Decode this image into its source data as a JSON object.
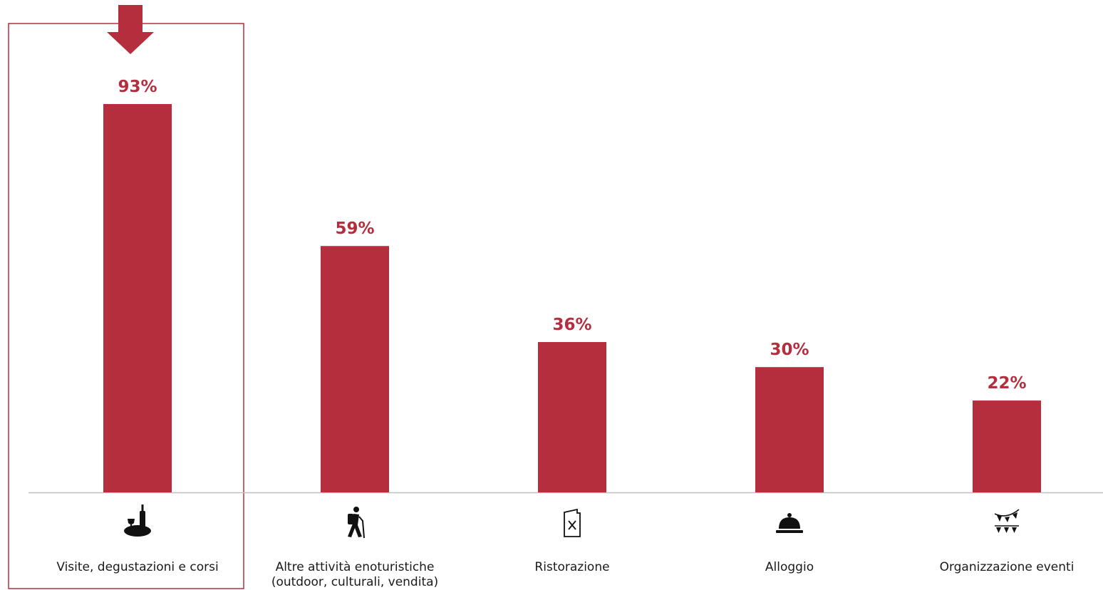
{
  "chart_data": {
    "type": "bar",
    "categories": [
      [
        "Visite, degustazioni e corsi"
      ],
      [
        "Altre attività enoturistiche",
        "(outdoor, culturali, vendita)"
      ],
      [
        "Ristorazione"
      ],
      [
        "Alloggio"
      ],
      [
        "Organizzazione eventi"
      ]
    ],
    "values": [
      93,
      59,
      36,
      30,
      22
    ],
    "value_labels": [
      "93%",
      "59%",
      "36%",
      "30%",
      "22%"
    ],
    "icons": [
      "wine-tasting-icon",
      "hiker-icon",
      "menu-icon",
      "service-bell-icon",
      "bunting-flags-icon"
    ],
    "highlighted_index": 0,
    "ylim": [
      0,
      100
    ],
    "grid": false,
    "colors": {
      "bar": "#b42e3e",
      "label": "#b42e3e",
      "axis": "#bfbfbf",
      "highlight": "#b42e3e"
    }
  }
}
